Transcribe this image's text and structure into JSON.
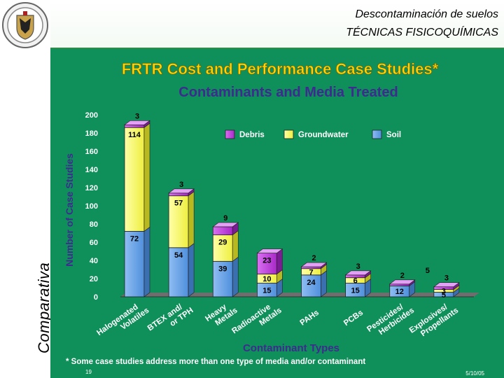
{
  "header": {
    "subtitle": "Descontaminación de suelos",
    "title": "TÉCNICAS FISICOQUÍMICAS",
    "side_label": "Comparativa"
  },
  "footer": {
    "footnote": "* Some case studies address more than one type of media and/or contaminant",
    "page_number": "19",
    "date": "5/10/05"
  },
  "colors": {
    "slide_bg": "#0f8f5a",
    "title": "#ffd400",
    "subtitle": "#3d2b8f",
    "debris": "#c040e0",
    "groundwater": "#ffff66",
    "soil": "#6aa6e8"
  },
  "chart_data": {
    "type": "bar",
    "stacked": true,
    "title": "FRTR Cost and Performance Case Studies*",
    "subtitle": "Contaminants and Media Treated",
    "xlabel": "Contaminant Types",
    "ylabel": "Number of Case Studies",
    "ylim": [
      0,
      200
    ],
    "yticks": [
      0,
      20,
      40,
      60,
      80,
      100,
      120,
      140,
      160,
      180,
      200
    ],
    "legend_position": "top-right",
    "categories": [
      "Halogenated Volatiles",
      "BTEX and/ or TPH",
      "Heavy Metals",
      "Radioactive Metals",
      "PAHs",
      "PCBs",
      "Pesticides/ Herbicides",
      "Explosives/ Propellants"
    ],
    "series": [
      {
        "name": "Soil",
        "values": [
          72,
          54,
          39,
          15,
          24,
          15,
          12,
          5
        ]
      },
      {
        "name": "Groundwater",
        "values": [
          114,
          57,
          29,
          10,
          7,
          6,
          0,
          3
        ]
      },
      {
        "name": "Debris",
        "values": [
          3,
          3,
          9,
          23,
          2,
          3,
          2,
          3
        ]
      }
    ],
    "extra_labels": [
      {
        "category": "Pesticides/ Herbicides",
        "text": "5"
      }
    ]
  }
}
